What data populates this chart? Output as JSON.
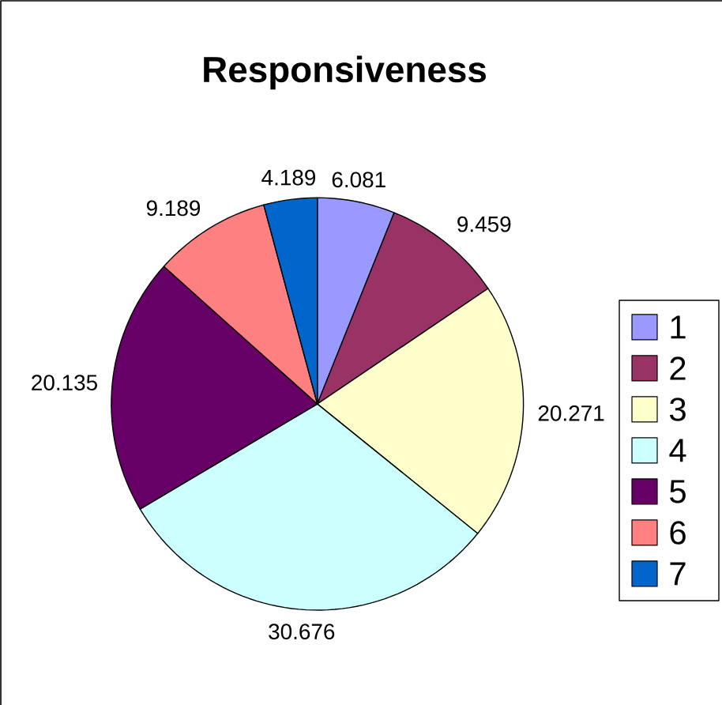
{
  "chart_data": {
    "type": "pie",
    "title": "Responsiveness",
    "categories": [
      "1",
      "2",
      "3",
      "4",
      "5",
      "6",
      "7"
    ],
    "values": [
      6.081,
      9.459,
      20.271,
      30.676,
      20.135,
      9.189,
      4.189
    ],
    "colors": [
      "#9999ff",
      "#993366",
      "#ffffcc",
      "#ccffff",
      "#660066",
      "#ff8080",
      "#0066cc"
    ],
    "data_labels": true,
    "legend": "right"
  }
}
